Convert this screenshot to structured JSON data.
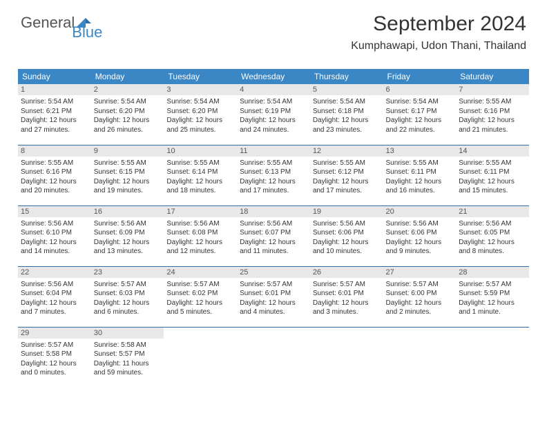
{
  "logo": {
    "part1": "General",
    "part2": "Blue"
  },
  "title": "September 2024",
  "location": "Kumphawapi, Udon Thani, Thailand",
  "colors": {
    "header_bg": "#3b86c4",
    "header_text": "#ffffff",
    "daynum_bg": "#e8e8e8",
    "row_border": "#2e6ea6",
    "logo_gray": "#555555",
    "logo_blue": "#3b86c4"
  },
  "weekdays": [
    "Sunday",
    "Monday",
    "Tuesday",
    "Wednesday",
    "Thursday",
    "Friday",
    "Saturday"
  ],
  "days": [
    {
      "n": "1",
      "sr": "Sunrise: 5:54 AM",
      "ss": "Sunset: 6:21 PM",
      "d1": "Daylight: 12 hours",
      "d2": "and 27 minutes."
    },
    {
      "n": "2",
      "sr": "Sunrise: 5:54 AM",
      "ss": "Sunset: 6:20 PM",
      "d1": "Daylight: 12 hours",
      "d2": "and 26 minutes."
    },
    {
      "n": "3",
      "sr": "Sunrise: 5:54 AM",
      "ss": "Sunset: 6:20 PM",
      "d1": "Daylight: 12 hours",
      "d2": "and 25 minutes."
    },
    {
      "n": "4",
      "sr": "Sunrise: 5:54 AM",
      "ss": "Sunset: 6:19 PM",
      "d1": "Daylight: 12 hours",
      "d2": "and 24 minutes."
    },
    {
      "n": "5",
      "sr": "Sunrise: 5:54 AM",
      "ss": "Sunset: 6:18 PM",
      "d1": "Daylight: 12 hours",
      "d2": "and 23 minutes."
    },
    {
      "n": "6",
      "sr": "Sunrise: 5:54 AM",
      "ss": "Sunset: 6:17 PM",
      "d1": "Daylight: 12 hours",
      "d2": "and 22 minutes."
    },
    {
      "n": "7",
      "sr": "Sunrise: 5:55 AM",
      "ss": "Sunset: 6:16 PM",
      "d1": "Daylight: 12 hours",
      "d2": "and 21 minutes."
    },
    {
      "n": "8",
      "sr": "Sunrise: 5:55 AM",
      "ss": "Sunset: 6:16 PM",
      "d1": "Daylight: 12 hours",
      "d2": "and 20 minutes."
    },
    {
      "n": "9",
      "sr": "Sunrise: 5:55 AM",
      "ss": "Sunset: 6:15 PM",
      "d1": "Daylight: 12 hours",
      "d2": "and 19 minutes."
    },
    {
      "n": "10",
      "sr": "Sunrise: 5:55 AM",
      "ss": "Sunset: 6:14 PM",
      "d1": "Daylight: 12 hours",
      "d2": "and 18 minutes."
    },
    {
      "n": "11",
      "sr": "Sunrise: 5:55 AM",
      "ss": "Sunset: 6:13 PM",
      "d1": "Daylight: 12 hours",
      "d2": "and 17 minutes."
    },
    {
      "n": "12",
      "sr": "Sunrise: 5:55 AM",
      "ss": "Sunset: 6:12 PM",
      "d1": "Daylight: 12 hours",
      "d2": "and 17 minutes."
    },
    {
      "n": "13",
      "sr": "Sunrise: 5:55 AM",
      "ss": "Sunset: 6:11 PM",
      "d1": "Daylight: 12 hours",
      "d2": "and 16 minutes."
    },
    {
      "n": "14",
      "sr": "Sunrise: 5:55 AM",
      "ss": "Sunset: 6:11 PM",
      "d1": "Daylight: 12 hours",
      "d2": "and 15 minutes."
    },
    {
      "n": "15",
      "sr": "Sunrise: 5:56 AM",
      "ss": "Sunset: 6:10 PM",
      "d1": "Daylight: 12 hours",
      "d2": "and 14 minutes."
    },
    {
      "n": "16",
      "sr": "Sunrise: 5:56 AM",
      "ss": "Sunset: 6:09 PM",
      "d1": "Daylight: 12 hours",
      "d2": "and 13 minutes."
    },
    {
      "n": "17",
      "sr": "Sunrise: 5:56 AM",
      "ss": "Sunset: 6:08 PM",
      "d1": "Daylight: 12 hours",
      "d2": "and 12 minutes."
    },
    {
      "n": "18",
      "sr": "Sunrise: 5:56 AM",
      "ss": "Sunset: 6:07 PM",
      "d1": "Daylight: 12 hours",
      "d2": "and 11 minutes."
    },
    {
      "n": "19",
      "sr": "Sunrise: 5:56 AM",
      "ss": "Sunset: 6:06 PM",
      "d1": "Daylight: 12 hours",
      "d2": "and 10 minutes."
    },
    {
      "n": "20",
      "sr": "Sunrise: 5:56 AM",
      "ss": "Sunset: 6:06 PM",
      "d1": "Daylight: 12 hours",
      "d2": "and 9 minutes."
    },
    {
      "n": "21",
      "sr": "Sunrise: 5:56 AM",
      "ss": "Sunset: 6:05 PM",
      "d1": "Daylight: 12 hours",
      "d2": "and 8 minutes."
    },
    {
      "n": "22",
      "sr": "Sunrise: 5:56 AM",
      "ss": "Sunset: 6:04 PM",
      "d1": "Daylight: 12 hours",
      "d2": "and 7 minutes."
    },
    {
      "n": "23",
      "sr": "Sunrise: 5:57 AM",
      "ss": "Sunset: 6:03 PM",
      "d1": "Daylight: 12 hours",
      "d2": "and 6 minutes."
    },
    {
      "n": "24",
      "sr": "Sunrise: 5:57 AM",
      "ss": "Sunset: 6:02 PM",
      "d1": "Daylight: 12 hours",
      "d2": "and 5 minutes."
    },
    {
      "n": "25",
      "sr": "Sunrise: 5:57 AM",
      "ss": "Sunset: 6:01 PM",
      "d1": "Daylight: 12 hours",
      "d2": "and 4 minutes."
    },
    {
      "n": "26",
      "sr": "Sunrise: 5:57 AM",
      "ss": "Sunset: 6:01 PM",
      "d1": "Daylight: 12 hours",
      "d2": "and 3 minutes."
    },
    {
      "n": "27",
      "sr": "Sunrise: 5:57 AM",
      "ss": "Sunset: 6:00 PM",
      "d1": "Daylight: 12 hours",
      "d2": "and 2 minutes."
    },
    {
      "n": "28",
      "sr": "Sunrise: 5:57 AM",
      "ss": "Sunset: 5:59 PM",
      "d1": "Daylight: 12 hours",
      "d2": "and 1 minute."
    },
    {
      "n": "29",
      "sr": "Sunrise: 5:57 AM",
      "ss": "Sunset: 5:58 PM",
      "d1": "Daylight: 12 hours",
      "d2": "and 0 minutes."
    },
    {
      "n": "30",
      "sr": "Sunrise: 5:58 AM",
      "ss": "Sunset: 5:57 PM",
      "d1": "Daylight: 11 hours",
      "d2": "and 59 minutes."
    }
  ]
}
